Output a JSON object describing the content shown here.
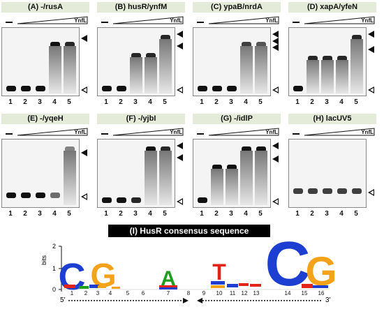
{
  "panels": [
    {
      "title": "(A) -/rusA"
    },
    {
      "title": "(B) husR/ynfM"
    },
    {
      "title": "(C) ypaB/nrdA"
    },
    {
      "title": "(D) xapA/yfeN"
    },
    {
      "title": "(E) -/yqeH"
    },
    {
      "title": "(F) -/yjbI"
    },
    {
      "title": "(G) -/idlP"
    },
    {
      "title": "(H) lacUV5"
    }
  ],
  "ynfl_label": "YnfL",
  "lane_numbers": [
    "1",
    "2",
    "3",
    "4",
    "5"
  ],
  "control_lane_mark": "—",
  "logo": {
    "title": "(I) HusR consensus sequence",
    "yaxis_label": "bits",
    "y_ticks": [
      "0",
      "1",
      "2"
    ],
    "positions": [
      "1",
      "2",
      "3",
      "4",
      "5",
      "6",
      "7",
      "8",
      "9",
      "10",
      "11",
      "12",
      "13",
      "14",
      "15",
      "16"
    ],
    "strand_left_label": "5'",
    "strand_right_label": "3'",
    "letters": {
      "C_big_left": "C",
      "G_big_left": "G",
      "A_mid": "A",
      "T_right": "T",
      "C_big_right": "C",
      "G_big_right": "G"
    },
    "colors": {
      "A": "#1ea01e",
      "C": "#1c3fd2",
      "G": "#f5a21b",
      "T": "#e2231a"
    }
  }
}
